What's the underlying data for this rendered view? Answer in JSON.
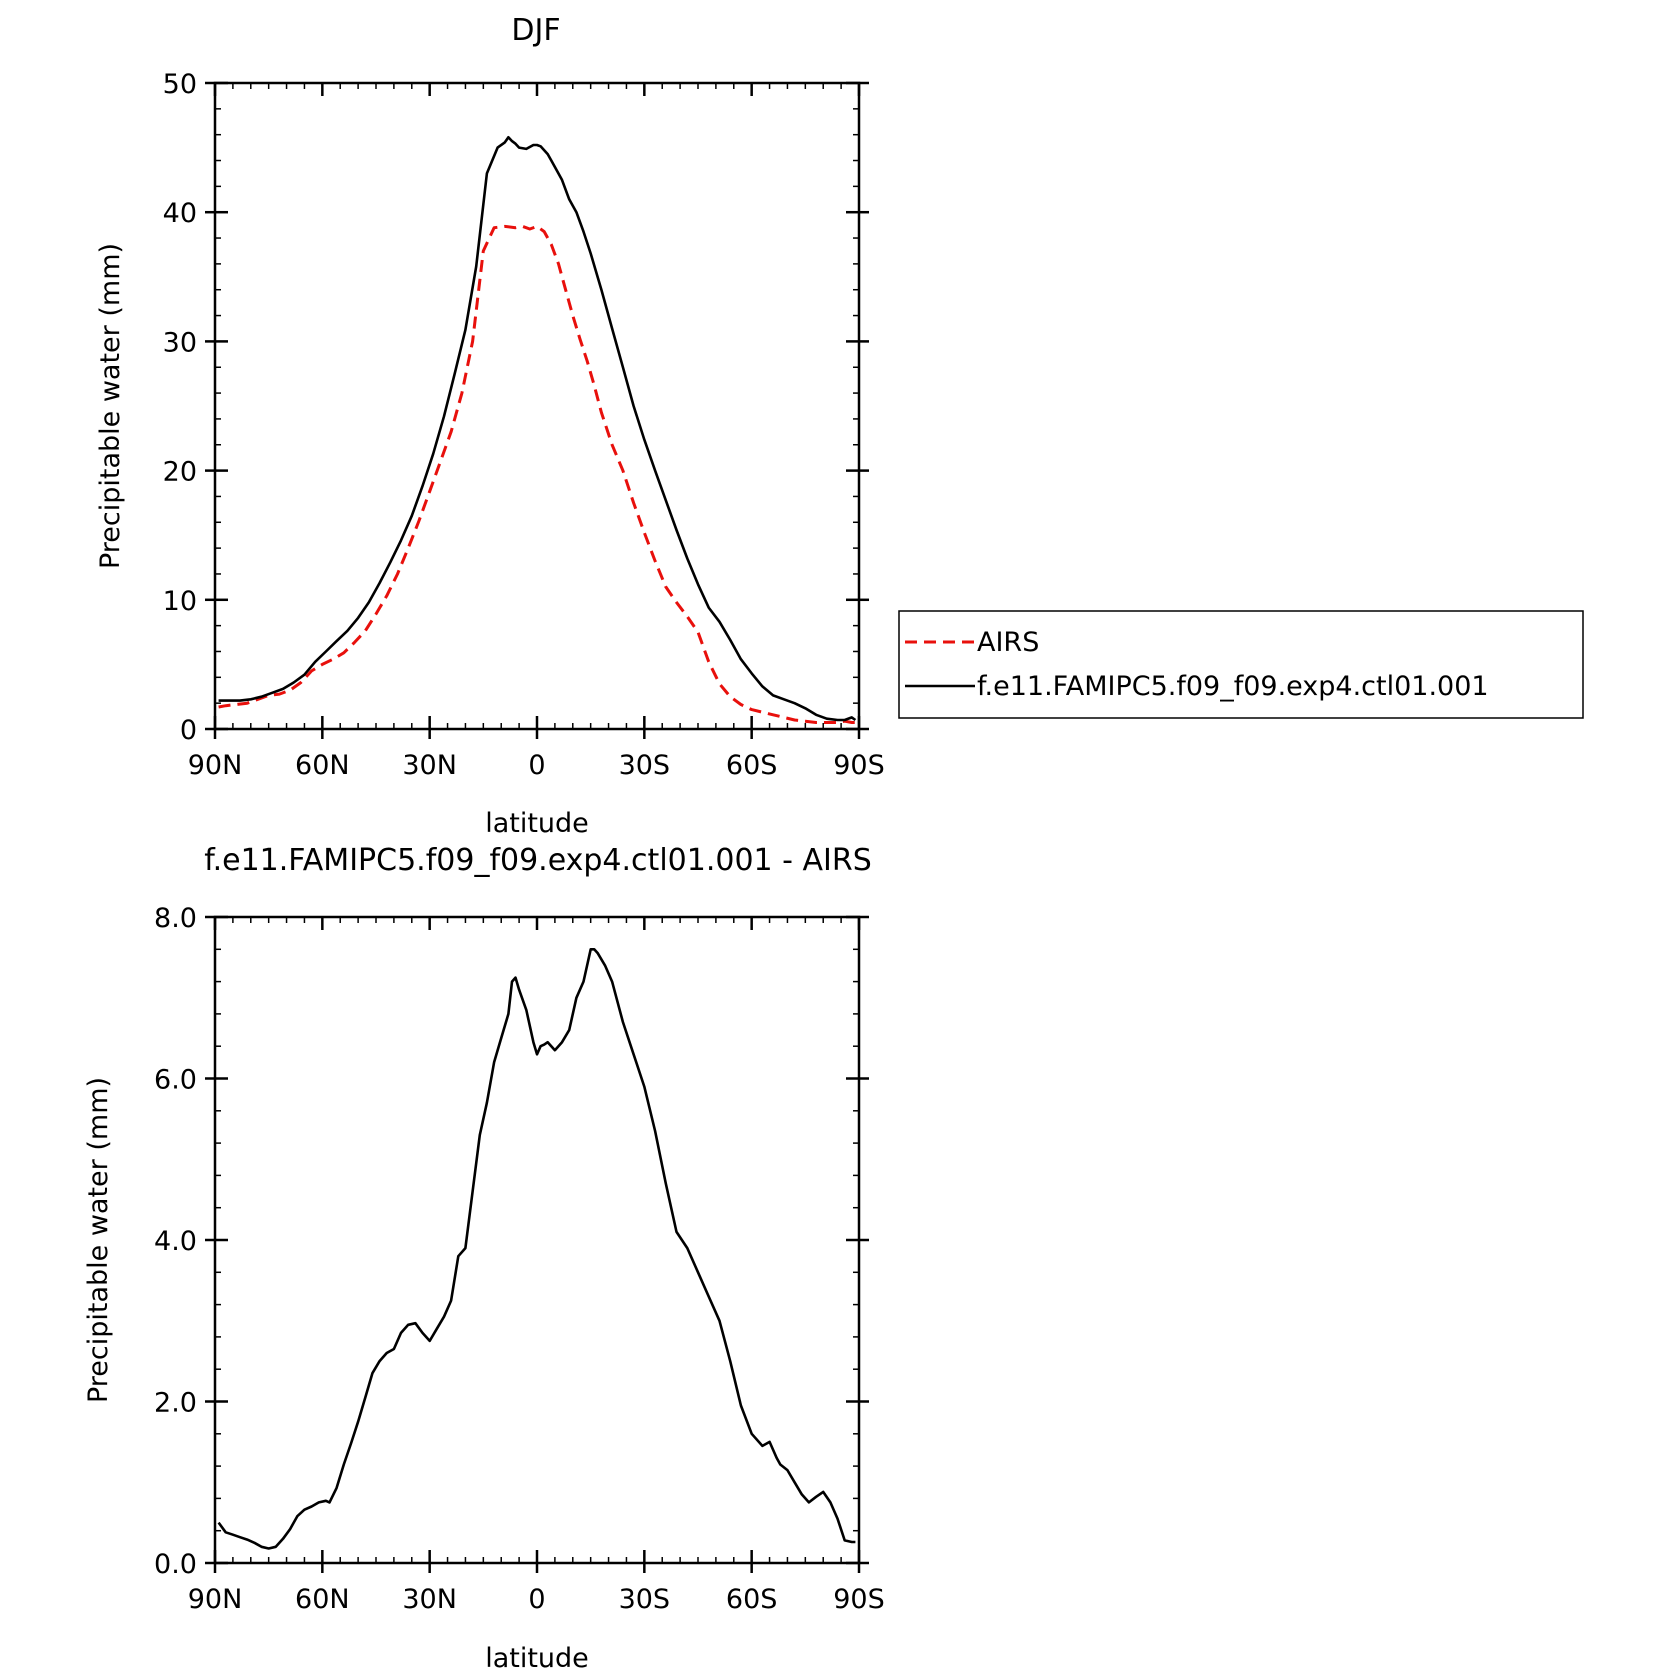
{
  "top": {
    "title": "DJF",
    "xlabel": "latitude",
    "ylabel": "Precipitable water (mm)",
    "legend": {
      "airs": "AIRS",
      "model": "f.e11.FAMIPC5.f09_f09.exp4.ctl01.001"
    }
  },
  "bottom": {
    "title": "f.e11.FAMIPC5.f09_f09.exp4.ctl01.001 - AIRS",
    "xlabel": "latitude",
    "ylabel": "Precipitable water (mm)"
  },
  "colors": {
    "airs": "#e8100c",
    "model": "#000000"
  },
  "chart_data": [
    {
      "type": "line",
      "title": "DJF",
      "xlabel": "latitude",
      "ylabel": "Precipitable water (mm)",
      "xlim": [
        90,
        -90
      ],
      "ylim": [
        0,
        50
      ],
      "xticks": [
        90,
        60,
        30,
        0,
        -30,
        -60,
        -90
      ],
      "xticklabels": [
        "90N",
        "60N",
        "30N",
        "0",
        "30S",
        "60S",
        "90S"
      ],
      "yticks": [
        0,
        10,
        20,
        30,
        40,
        50
      ],
      "yticklabels": [
        "0",
        "10",
        "20",
        "30",
        "40",
        "50"
      ],
      "legend_position": "right",
      "series": [
        {
          "name": "AIRS",
          "style": "dashed",
          "color": "#e8100c",
          "x": [
            89,
            87,
            84,
            81,
            78,
            75,
            72,
            69,
            66,
            63,
            60,
            57,
            54,
            51,
            48,
            45,
            42,
            39,
            36,
            33,
            30,
            27,
            24,
            21,
            18,
            15,
            12,
            9,
            6,
            4,
            2,
            0,
            -2,
            -4,
            -6,
            -8,
            -10,
            -12,
            -14,
            -16,
            -18,
            -21,
            -24,
            -27,
            -30,
            -33,
            -36,
            -39,
            -42,
            -45,
            -48,
            -51,
            -54,
            -57,
            -60,
            -63,
            -66,
            -69,
            -72,
            -75,
            -78,
            -81,
            -84,
            -86,
            -88,
            -89
          ],
          "y": [
            1.7,
            1.8,
            1.9,
            2.0,
            2.3,
            2.6,
            2.7,
            3.0,
            3.6,
            4.5,
            5.0,
            5.4,
            5.9,
            6.7,
            7.6,
            8.9,
            10.3,
            12.0,
            14.0,
            16.1,
            18.4,
            20.7,
            23.0,
            26.0,
            30.0,
            37.0,
            38.8,
            38.9,
            38.8,
            38.9,
            38.7,
            38.9,
            38.5,
            37.5,
            36.0,
            34.0,
            32.0,
            30.2,
            28.5,
            26.6,
            24.5,
            22.0,
            20.0,
            17.5,
            15.2,
            13.0,
            11.0,
            9.8,
            8.7,
            7.5,
            5.2,
            3.5,
            2.5,
            1.9,
            1.5,
            1.3,
            1.1,
            0.9,
            0.7,
            0.6,
            0.5,
            0.5,
            0.5,
            0.6,
            0.5,
            0.5
          ]
        },
        {
          "name": "f.e11.FAMIPC5.f09_f09.exp4.ctl01.001",
          "style": "solid",
          "color": "#000000",
          "x": [
            89,
            86,
            83,
            80,
            77,
            74,
            71,
            68,
            65,
            62,
            59,
            56,
            53,
            50,
            47,
            44,
            41,
            38,
            35,
            32,
            29,
            26,
            23,
            20,
            17,
            14,
            11,
            9,
            8,
            7,
            6,
            5,
            3,
            1,
            0,
            -1,
            -2,
            -3,
            -4,
            -5,
            -7,
            -9,
            -11,
            -13,
            -15,
            -18,
            -21,
            -24,
            -27,
            -30,
            -33,
            -36,
            -39,
            -42,
            -45,
            -48,
            -51,
            -54,
            -57,
            -60,
            -63,
            -66,
            -69,
            -72,
            -75,
            -78,
            -81,
            -84,
            -86,
            -88,
            -89
          ],
          "y": [
            2.2,
            2.2,
            2.2,
            2.3,
            2.5,
            2.8,
            3.1,
            3.6,
            4.2,
            5.2,
            6.0,
            6.8,
            7.6,
            8.6,
            9.8,
            11.3,
            12.9,
            14.6,
            16.5,
            18.8,
            21.3,
            24.2,
            27.5,
            30.9,
            35.8,
            43.0,
            45.0,
            45.4,
            45.8,
            45.5,
            45.3,
            45.0,
            44.9,
            45.2,
            45.2,
            45.1,
            44.8,
            44.5,
            44.0,
            43.5,
            42.5,
            41.0,
            40.0,
            38.5,
            36.8,
            34.0,
            31.0,
            28.0,
            25.0,
            22.4,
            20.0,
            17.7,
            15.4,
            13.2,
            11.2,
            9.4,
            8.3,
            6.9,
            5.4,
            4.3,
            3.3,
            2.6,
            2.3,
            2.0,
            1.6,
            1.1,
            0.8,
            0.7,
            0.7,
            0.9,
            0.7
          ]
        }
      ]
    },
    {
      "type": "line",
      "title": "f.e11.FAMIPC5.f09_f09.exp4.ctl01.001 - AIRS",
      "xlabel": "latitude",
      "ylabel": "Precipitable water (mm)",
      "xlim": [
        90,
        -90
      ],
      "ylim": [
        0,
        8
      ],
      "xticks": [
        90,
        60,
        30,
        0,
        -30,
        -60,
        -90
      ],
      "xticklabels": [
        "90N",
        "60N",
        "30N",
        "0",
        "30S",
        "60S",
        "90S"
      ],
      "yticks": [
        0,
        2,
        4,
        6,
        8
      ],
      "yticklabels": [
        "0.0",
        "2.0",
        "4.0",
        "6.0",
        "8.0"
      ],
      "series": [
        {
          "style": "solid",
          "color": "#000000",
          "x": [
            89,
            87,
            85,
            83,
            81,
            79,
            77,
            75,
            73,
            71,
            69,
            67,
            65,
            63,
            61,
            59,
            58,
            56,
            54,
            52,
            50,
            48,
            46,
            44,
            42,
            40,
            38,
            36,
            34,
            32,
            30,
            28,
            26,
            24,
            22,
            20,
            18,
            16,
            14,
            12,
            10,
            8,
            7,
            6,
            5,
            3,
            1,
            0,
            -1,
            -2,
            -3,
            -4,
            -5,
            -7,
            -9,
            -11,
            -13,
            -15,
            -16,
            -17,
            -19,
            -21,
            -24,
            -27,
            -30,
            -33,
            -36,
            -39,
            -42,
            -45,
            -48,
            -51,
            -54,
            -57,
            -60,
            -63,
            -65,
            -67,
            -68,
            -70,
            -72,
            -74,
            -76,
            -78,
            -80,
            -82,
            -84,
            -86,
            -88,
            -89
          ],
          "y": [
            0.5,
            0.38,
            0.35,
            0.32,
            0.29,
            0.25,
            0.2,
            0.18,
            0.2,
            0.3,
            0.42,
            0.58,
            0.66,
            0.7,
            0.75,
            0.77,
            0.75,
            0.93,
            1.22,
            1.48,
            1.75,
            2.05,
            2.35,
            2.5,
            2.6,
            2.65,
            2.85,
            2.95,
            2.97,
            2.85,
            2.75,
            2.9,
            3.05,
            3.25,
            3.8,
            3.9,
            4.6,
            5.3,
            5.7,
            6.2,
            6.5,
            6.8,
            7.2,
            7.25,
            7.1,
            6.85,
            6.45,
            6.3,
            6.4,
            6.42,
            6.45,
            6.4,
            6.35,
            6.45,
            6.6,
            7.0,
            7.2,
            7.6,
            7.6,
            7.55,
            7.4,
            7.2,
            6.7,
            6.3,
            5.9,
            5.35,
            4.7,
            4.1,
            3.9,
            3.6,
            3.3,
            3.0,
            2.5,
            1.95,
            1.6,
            1.45,
            1.5,
            1.3,
            1.22,
            1.15,
            1.0,
            0.85,
            0.75,
            0.82,
            0.88,
            0.75,
            0.55,
            0.28,
            0.26,
            0.26
          ]
        }
      ]
    }
  ]
}
